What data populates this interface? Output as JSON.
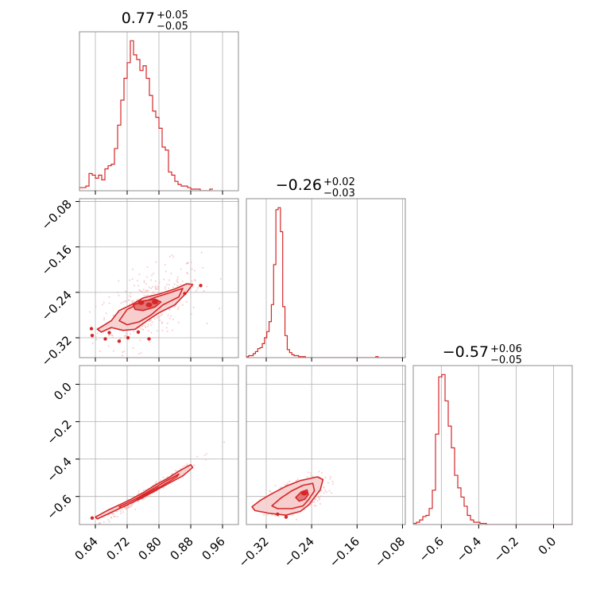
{
  "chart_data": {
    "type": "corner",
    "colors": {
      "main": "#d62728",
      "fill_inner": "#e06c6c",
      "fill_outer": "#f6cccc",
      "points": "#f2b7b8"
    },
    "titles": [
      {
        "median": "0.77",
        "plus": "+0.05",
        "minus": "−0.05"
      },
      {
        "median": "−0.26",
        "plus": "+0.02",
        "minus": "−0.03"
      },
      {
        "median": "−0.57",
        "plus": "+0.06",
        "minus": "−0.05"
      }
    ],
    "params": [
      {
        "range": [
          0.6,
          1.0
        ],
        "ticks": [
          0.64,
          0.72,
          0.8,
          0.88,
          0.96
        ],
        "tick_labels": [
          "0.64",
          "0.72",
          "0.80",
          "0.88",
          "0.96"
        ]
      },
      {
        "range": [
          -0.355,
          -0.075
        ],
        "ticks": [
          -0.32,
          -0.24,
          -0.16,
          -0.08
        ],
        "tick_labels": [
          "−0.32",
          "−0.24",
          "−0.16",
          "−0.08"
        ]
      },
      {
        "range": [
          -0.75,
          0.1
        ],
        "ticks": [
          -0.6,
          -0.4,
          -0.2,
          0.0
        ],
        "tick_labels": [
          "−0.6",
          "−0.4",
          "−0.2",
          "0.0"
        ]
      }
    ],
    "histograms": [
      {
        "bin_start": 0.6,
        "bin_width": 0.008,
        "counts": [
          2,
          2,
          3,
          11,
          10,
          8,
          10,
          7,
          14,
          16,
          17,
          27,
          42,
          58,
          72,
          82,
          96,
          87,
          84,
          77,
          80,
          72,
          61,
          51,
          47,
          40,
          28,
          26,
          12,
          10,
          6,
          4,
          3,
          3,
          2,
          1,
          1,
          1,
          0,
          0,
          0,
          1
        ]
      },
      {
        "bin_start": -0.355,
        "bin_width": 0.004,
        "counts": [
          1,
          2,
          2,
          4,
          6,
          9,
          10,
          14,
          20,
          26,
          36,
          53,
          93,
          148,
          150,
          126,
          51,
          22,
          8,
          5,
          3,
          2,
          2,
          1,
          1,
          1,
          0,
          0,
          0,
          0,
          0,
          0,
          0,
          0,
          0,
          0,
          0,
          0,
          0,
          0,
          0,
          0,
          0,
          0,
          0,
          0,
          0,
          0,
          0,
          0,
          0,
          0,
          0,
          0,
          0,
          0,
          0,
          1,
          0,
          0,
          0,
          0,
          0,
          0,
          0,
          0,
          0,
          0,
          0,
          0,
          0
        ]
      },
      {
        "bin_start": -0.75,
        "bin_width": 0.017,
        "counts": [
          1,
          2,
          4,
          7,
          8,
          14,
          30,
          79,
          129,
          131,
          108,
          86,
          67,
          43,
          32,
          24,
          16,
          8,
          4,
          2,
          2,
          1,
          1,
          0,
          0,
          0,
          0,
          0,
          0,
          0,
          0,
          0,
          0,
          0,
          0,
          0,
          0,
          0,
          0,
          0,
          0,
          0,
          0,
          0,
          0,
          0,
          0,
          0,
          0,
          0
        ]
      }
    ],
    "joint_panels": [
      {
        "x_param": 0,
        "y_param": 1,
        "contours_outer": [
          [
            0.645,
            -0.305
          ],
          [
            0.68,
            -0.29
          ],
          [
            0.7,
            -0.272
          ],
          [
            0.73,
            -0.262
          ],
          [
            0.76,
            -0.25
          ],
          [
            0.8,
            -0.243
          ],
          [
            0.84,
            -0.234
          ],
          [
            0.87,
            -0.225
          ],
          [
            0.885,
            -0.226
          ],
          [
            0.87,
            -0.24
          ],
          [
            0.84,
            -0.262
          ],
          [
            0.8,
            -0.276
          ],
          [
            0.77,
            -0.29
          ],
          [
            0.74,
            -0.305
          ],
          [
            0.71,
            -0.307
          ],
          [
            0.68,
            -0.302
          ],
          [
            0.655,
            -0.31
          ]
        ],
        "contours_mid": [
          [
            0.7,
            -0.29
          ],
          [
            0.72,
            -0.27
          ],
          [
            0.75,
            -0.26
          ],
          [
            0.79,
            -0.249
          ],
          [
            0.83,
            -0.24
          ],
          [
            0.86,
            -0.233
          ],
          [
            0.85,
            -0.248
          ],
          [
            0.81,
            -0.262
          ],
          [
            0.78,
            -0.28
          ],
          [
            0.75,
            -0.292
          ],
          [
            0.72,
            -0.297
          ]
        ],
        "contours_inner": [
          [
            0.735,
            -0.262
          ],
          [
            0.76,
            -0.255
          ],
          [
            0.79,
            -0.252
          ],
          [
            0.805,
            -0.257
          ],
          [
            0.79,
            -0.266
          ],
          [
            0.76,
            -0.272
          ],
          [
            0.74,
            -0.27
          ]
        ],
        "islands": [
          [
            0.63,
            -0.304
          ],
          [
            0.632,
            -0.316
          ],
          [
            0.675,
            -0.311
          ],
          [
            0.665,
            -0.322
          ],
          [
            0.7,
            -0.326
          ],
          [
            0.722,
            -0.32
          ],
          [
            0.748,
            -0.31
          ],
          [
            0.775,
            -0.322
          ],
          [
            0.865,
            -0.242
          ],
          [
            0.905,
            -0.228
          ]
        ],
        "core": [
          [
            0.755,
            -0.258
          ],
          [
            0.775,
            -0.262
          ],
          [
            0.79,
            -0.257
          ]
        ],
        "cloud": {
          "cx": 0.775,
          "cy": -0.262,
          "sx": 0.065,
          "sy": 0.03,
          "slope": 0.3,
          "n": 320
        }
      },
      {
        "x_param": 0,
        "y_param": 2,
        "contours_outer": [
          [
            0.64,
            -0.71
          ],
          [
            0.67,
            -0.675
          ],
          [
            0.7,
            -0.645
          ],
          [
            0.73,
            -0.615
          ],
          [
            0.76,
            -0.58
          ],
          [
            0.79,
            -0.54
          ],
          [
            0.82,
            -0.505
          ],
          [
            0.85,
            -0.465
          ],
          [
            0.88,
            -0.43
          ],
          [
            0.885,
            -0.445
          ],
          [
            0.86,
            -0.49
          ],
          [
            0.82,
            -0.535
          ],
          [
            0.79,
            -0.57
          ],
          [
            0.76,
            -0.605
          ],
          [
            0.73,
            -0.635
          ],
          [
            0.7,
            -0.665
          ],
          [
            0.67,
            -0.695
          ],
          [
            0.645,
            -0.72
          ]
        ],
        "contours_mid": [
          [
            0.7,
            -0.655
          ],
          [
            0.74,
            -0.615
          ],
          [
            0.78,
            -0.565
          ],
          [
            0.82,
            -0.515
          ],
          [
            0.85,
            -0.48
          ],
          [
            0.845,
            -0.495
          ],
          [
            0.81,
            -0.54
          ],
          [
            0.77,
            -0.59
          ],
          [
            0.73,
            -0.635
          ],
          [
            0.705,
            -0.66
          ]
        ],
        "contours_inner": [
          [
            0.745,
            -0.612
          ],
          [
            0.77,
            -0.585
          ],
          [
            0.8,
            -0.55
          ],
          [
            0.795,
            -0.565
          ],
          [
            0.765,
            -0.598
          ],
          [
            0.745,
            -0.62
          ]
        ],
        "islands": [
          [
            0.632,
            -0.715
          ]
        ],
        "core": [],
        "cloud": {
          "cx": 0.775,
          "cy": -0.575,
          "sx": 0.06,
          "sy": 0.012,
          "slope": 1.35,
          "n": 320
        }
      },
      {
        "x_param": 1,
        "y_param": 2,
        "contours_outer": [
          [
            -0.345,
            -0.655
          ],
          [
            -0.33,
            -0.62
          ],
          [
            -0.31,
            -0.585
          ],
          [
            -0.285,
            -0.545
          ],
          [
            -0.26,
            -0.515
          ],
          [
            -0.23,
            -0.495
          ],
          [
            -0.22,
            -0.51
          ],
          [
            -0.225,
            -0.565
          ],
          [
            -0.235,
            -0.605
          ],
          [
            -0.245,
            -0.645
          ],
          [
            -0.26,
            -0.68
          ],
          [
            -0.285,
            -0.7
          ],
          [
            -0.315,
            -0.69
          ],
          [
            -0.34,
            -0.675
          ]
        ],
        "contours_mid": [
          [
            -0.31,
            -0.65
          ],
          [
            -0.295,
            -0.61
          ],
          [
            -0.275,
            -0.57
          ],
          [
            -0.255,
            -0.54
          ],
          [
            -0.238,
            -0.53
          ],
          [
            -0.235,
            -0.57
          ],
          [
            -0.245,
            -0.615
          ],
          [
            -0.255,
            -0.65
          ],
          [
            -0.275,
            -0.665
          ],
          [
            -0.3,
            -0.665
          ]
        ],
        "contours_inner": [
          [
            -0.268,
            -0.605
          ],
          [
            -0.258,
            -0.575
          ],
          [
            -0.248,
            -0.565
          ],
          [
            -0.246,
            -0.59
          ],
          [
            -0.252,
            -0.615
          ],
          [
            -0.262,
            -0.625
          ]
        ],
        "islands": [
          [
            -0.3,
            -0.695
          ],
          [
            -0.285,
            -0.71
          ]
        ],
        "core": [
          [
            -0.253,
            -0.582
          ]
        ],
        "cloud": {
          "cx": -0.262,
          "cy": -0.59,
          "sx": 0.025,
          "sy": 0.045,
          "slope": 0.9,
          "n": 280
        }
      }
    ]
  }
}
